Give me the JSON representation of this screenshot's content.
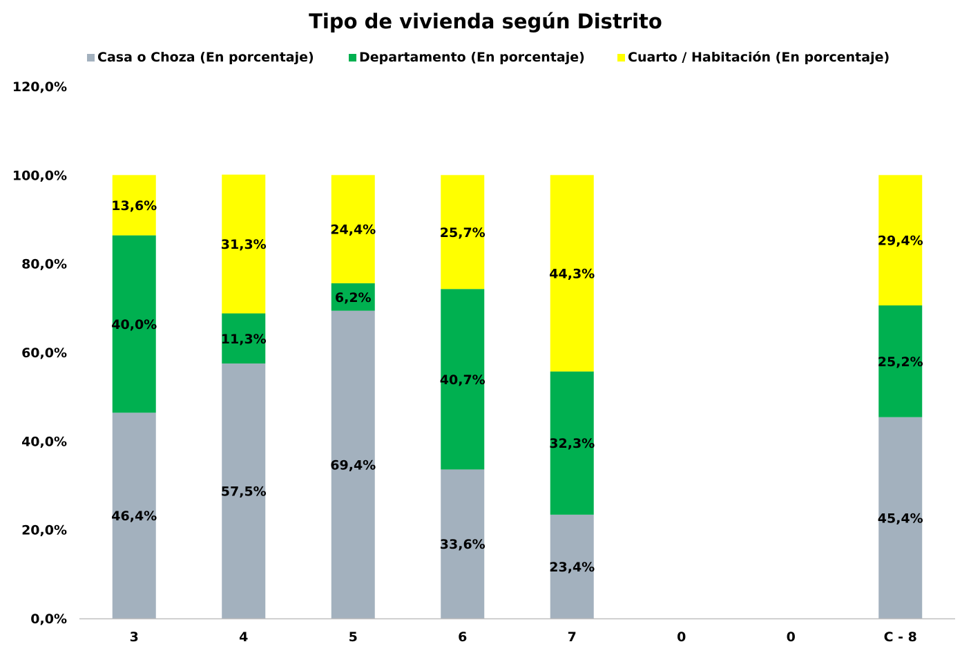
{
  "chart_data": {
    "type": "bar",
    "stacked": true,
    "title": "Tipo de vivienda según Distrito",
    "xlabel": "",
    "ylabel": "",
    "categories": [
      "3",
      "4",
      "5",
      "6",
      "7",
      "0",
      "0",
      "C - 8"
    ],
    "series": [
      {
        "name": "Casa o Choza (En porcentaje)",
        "color": "#A3B1BE",
        "values": [
          46.4,
          57.5,
          69.4,
          33.6,
          23.4,
          null,
          null,
          45.4
        ],
        "labels": [
          "46,4%",
          "57,5%",
          "69,4%",
          "33,6%",
          "23,4%",
          "",
          "",
          "45,4%"
        ]
      },
      {
        "name": "Departamento (En porcentaje)",
        "color": "#00B050",
        "values": [
          40.0,
          11.3,
          6.2,
          40.7,
          32.3,
          null,
          null,
          25.2
        ],
        "labels": [
          "40,0%",
          "11,3%",
          "6,2%",
          "40,7%",
          "32,3%",
          "",
          "",
          "25,2%"
        ]
      },
      {
        "name": "Cuarto / Habitación (En porcentaje)",
        "color": "#FFFF00",
        "values": [
          13.6,
          31.3,
          24.4,
          25.7,
          44.3,
          null,
          null,
          29.4
        ],
        "labels": [
          "13,6%",
          "31,3%",
          "24,4%",
          "25,7%",
          "44,3%",
          "",
          "",
          "29,4%"
        ]
      }
    ],
    "ylim": [
      0,
      120
    ],
    "yticks": [
      0,
      20,
      40,
      60,
      80,
      100,
      120
    ],
    "ytick_labels": [
      "0,0%",
      "20,0%",
      "40,0%",
      "60,0%",
      "80,0%",
      "100,0%",
      "120,0%"
    ],
    "grid": false,
    "legend_position": "top"
  }
}
